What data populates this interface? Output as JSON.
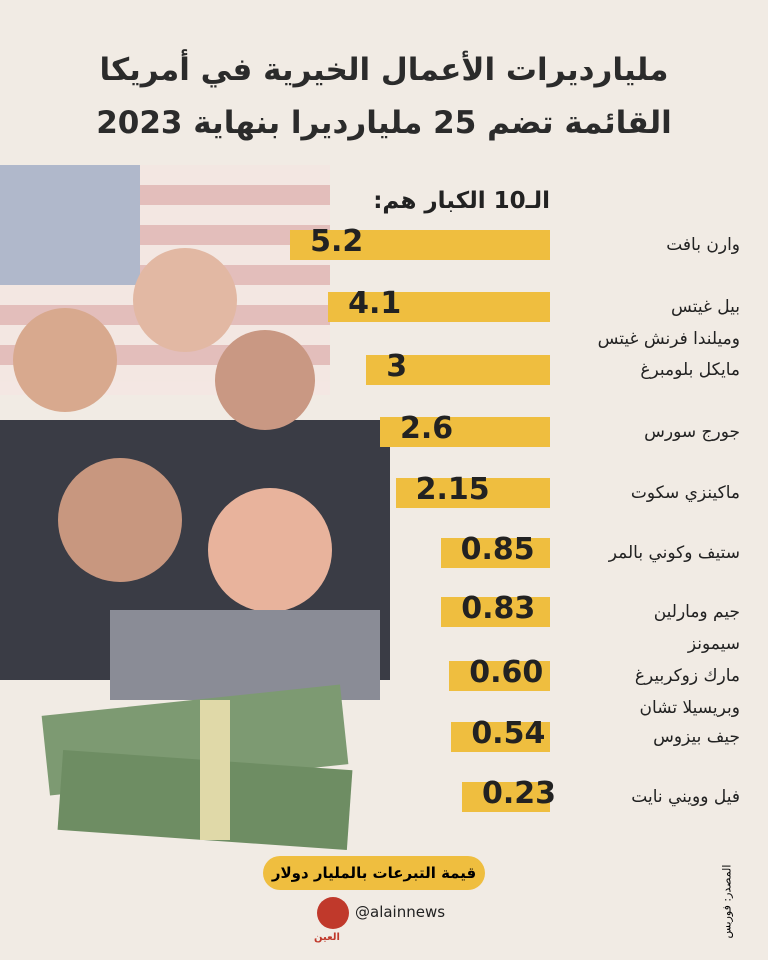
{
  "header": {
    "title_line1": "مليارديرات الأعمال الخيرية في أمريكا",
    "title_line2": "القائمة تضم 25 مليارديرا بنهاية 2023"
  },
  "chart_data": {
    "type": "bar",
    "orientation": "horizontal",
    "subtitle": "الـ10 الكبار هم:",
    "categories": [
      "وارن بافت",
      "بيل غيتس\nوميلندا فرنش غيتس",
      "مايكل بلومبرغ",
      "جورج سورس",
      "ماكينزي سكوت",
      "ستيف وكوني بالمر",
      "جيم ومارلين\nسيمونز",
      "مارك زوكربيرغ\nوبريسيلا تشان",
      "جيف بيزوس",
      "فيل وويني نايت"
    ],
    "values": [
      5.2,
      4.1,
      3,
      2.6,
      2.15,
      0.85,
      0.83,
      0.6,
      0.54,
      0.23
    ],
    "value_labels": [
      "5.2",
      "4.1",
      "3",
      "2.6",
      "2.15",
      "0.85",
      "0.83",
      "0.60",
      "0.54",
      "0.23"
    ],
    "color": "#efbe3f",
    "unit_note": "قيمة التبرعات بالمليار دولار"
  },
  "footer": {
    "source": "المصدر: فوربس",
    "handle": "@alainnews",
    "logo": "العين"
  }
}
